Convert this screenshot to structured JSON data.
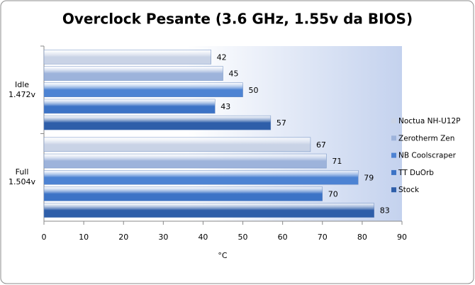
{
  "chart_data": {
    "type": "bar",
    "orientation": "horizontal",
    "title": "Overclock Pesante (3.6 GHz, 1.55v da BIOS)",
    "x_label": "°C",
    "categories": [
      "Idle\n1.472v",
      "Full\n1.504v"
    ],
    "series": [
      {
        "name": "Noctua NH-U12P",
        "color": "#c9d3e6",
        "values": [
          42,
          67
        ]
      },
      {
        "name": "Zerotherm Zen",
        "color": "#9db3db",
        "values": [
          45,
          71
        ]
      },
      {
        "name": "NB Coolscraper",
        "color": "#4d83d3",
        "values": [
          50,
          79
        ]
      },
      {
        "name": "TT DuOrb",
        "color": "#3c73c6",
        "values": [
          43,
          70
        ]
      },
      {
        "name": "Stock",
        "color": "#2e5ea9",
        "values": [
          57,
          83
        ]
      }
    ],
    "xlim": [
      0,
      90
    ],
    "xticks": [
      0,
      10,
      20,
      30,
      40,
      50,
      60,
      70,
      80,
      90
    ],
    "legend": "right"
  }
}
